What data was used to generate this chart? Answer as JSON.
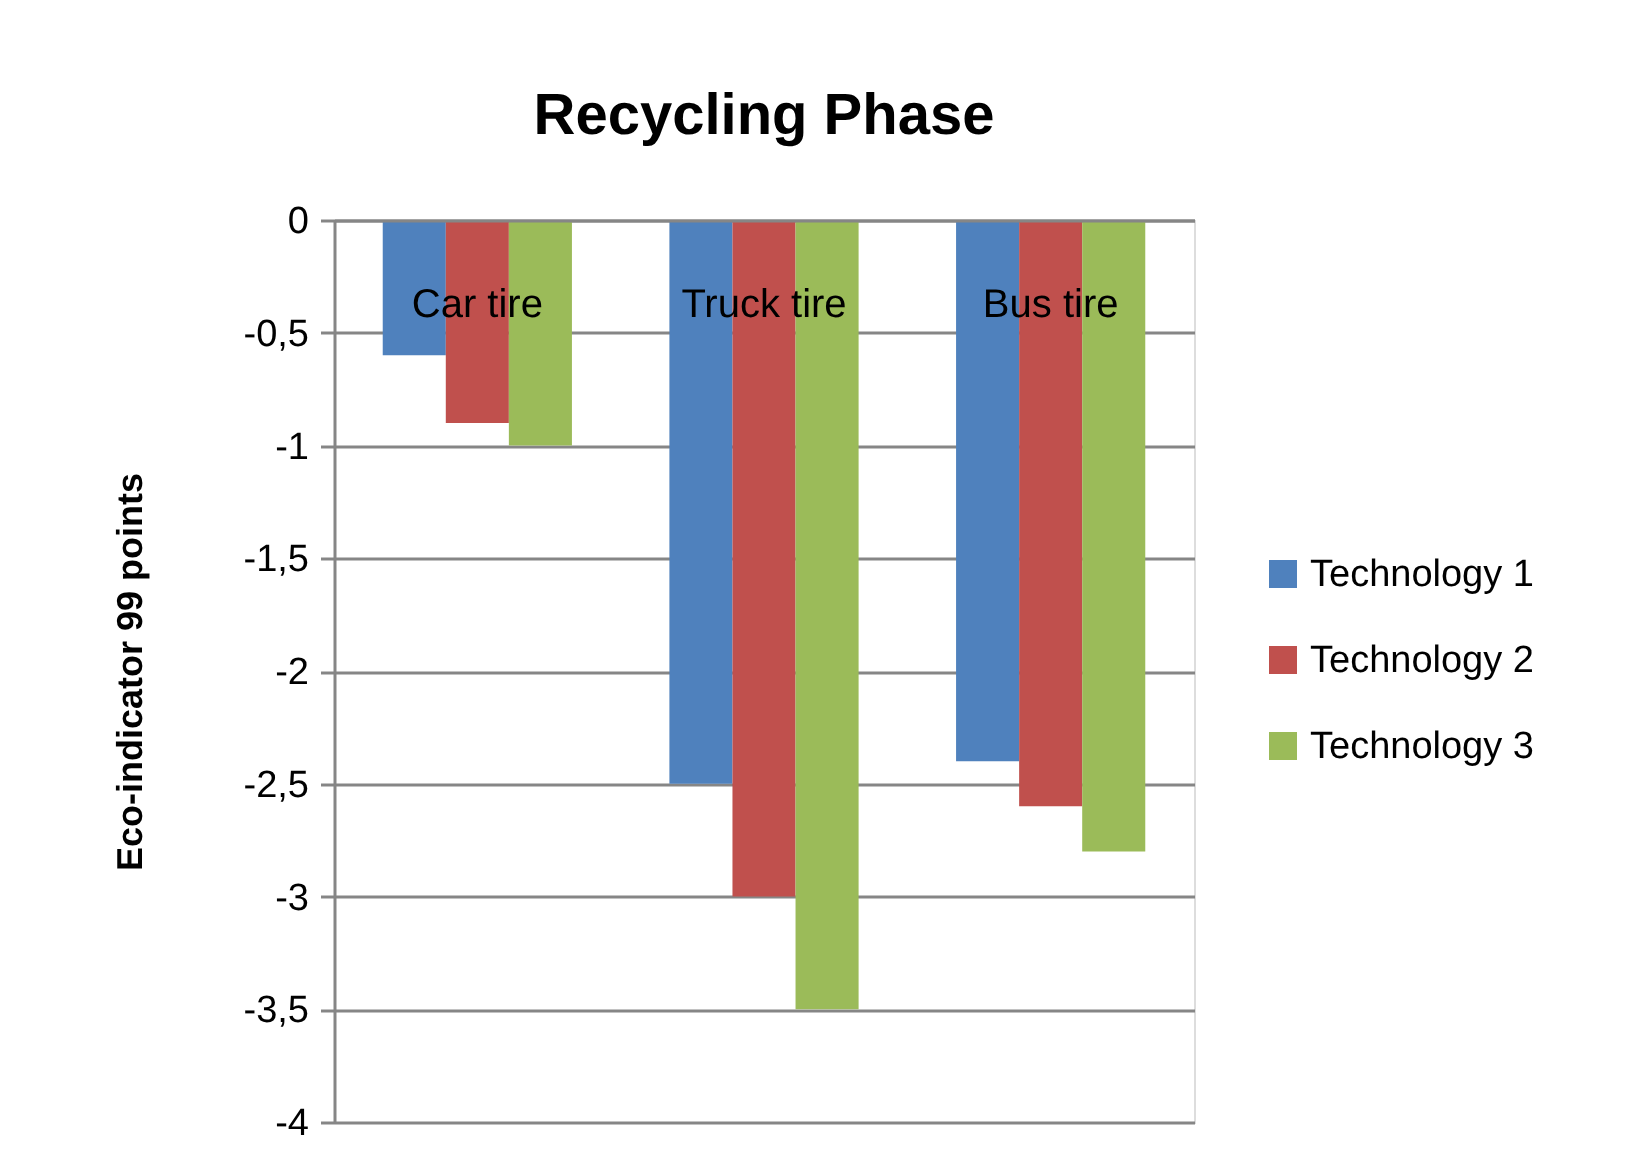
{
  "chart_data": {
    "type": "bar",
    "title": "Recycling Phase",
    "ylabel": "Eco-indicator 99 points",
    "categories": [
      "Car tire",
      "Truck tire",
      "Bus tire"
    ],
    "series": [
      {
        "name": "Technology 1",
        "color": "#4f81bd",
        "values": [
          -0.6,
          -2.5,
          -2.4
        ]
      },
      {
        "name": "Technology 2",
        "color": "#c0504d",
        "values": [
          -0.9,
          -3.0,
          -2.6
        ]
      },
      {
        "name": "Technology 3",
        "color": "#9bbb59",
        "values": [
          -1.0,
          -3.5,
          -2.8
        ]
      }
    ],
    "ylim": [
      -4,
      0
    ],
    "yticks": [
      0,
      {
        "value": -0.5,
        "label": "-0,5"
      },
      -1,
      {
        "value": -1.5,
        "label": "-1,5"
      },
      -2,
      {
        "value": -2.5,
        "label": "-2,5"
      },
      -3,
      {
        "value": -3.5,
        "label": "-3,5"
      },
      -4
    ],
    "grid": "y",
    "legend": "right"
  }
}
